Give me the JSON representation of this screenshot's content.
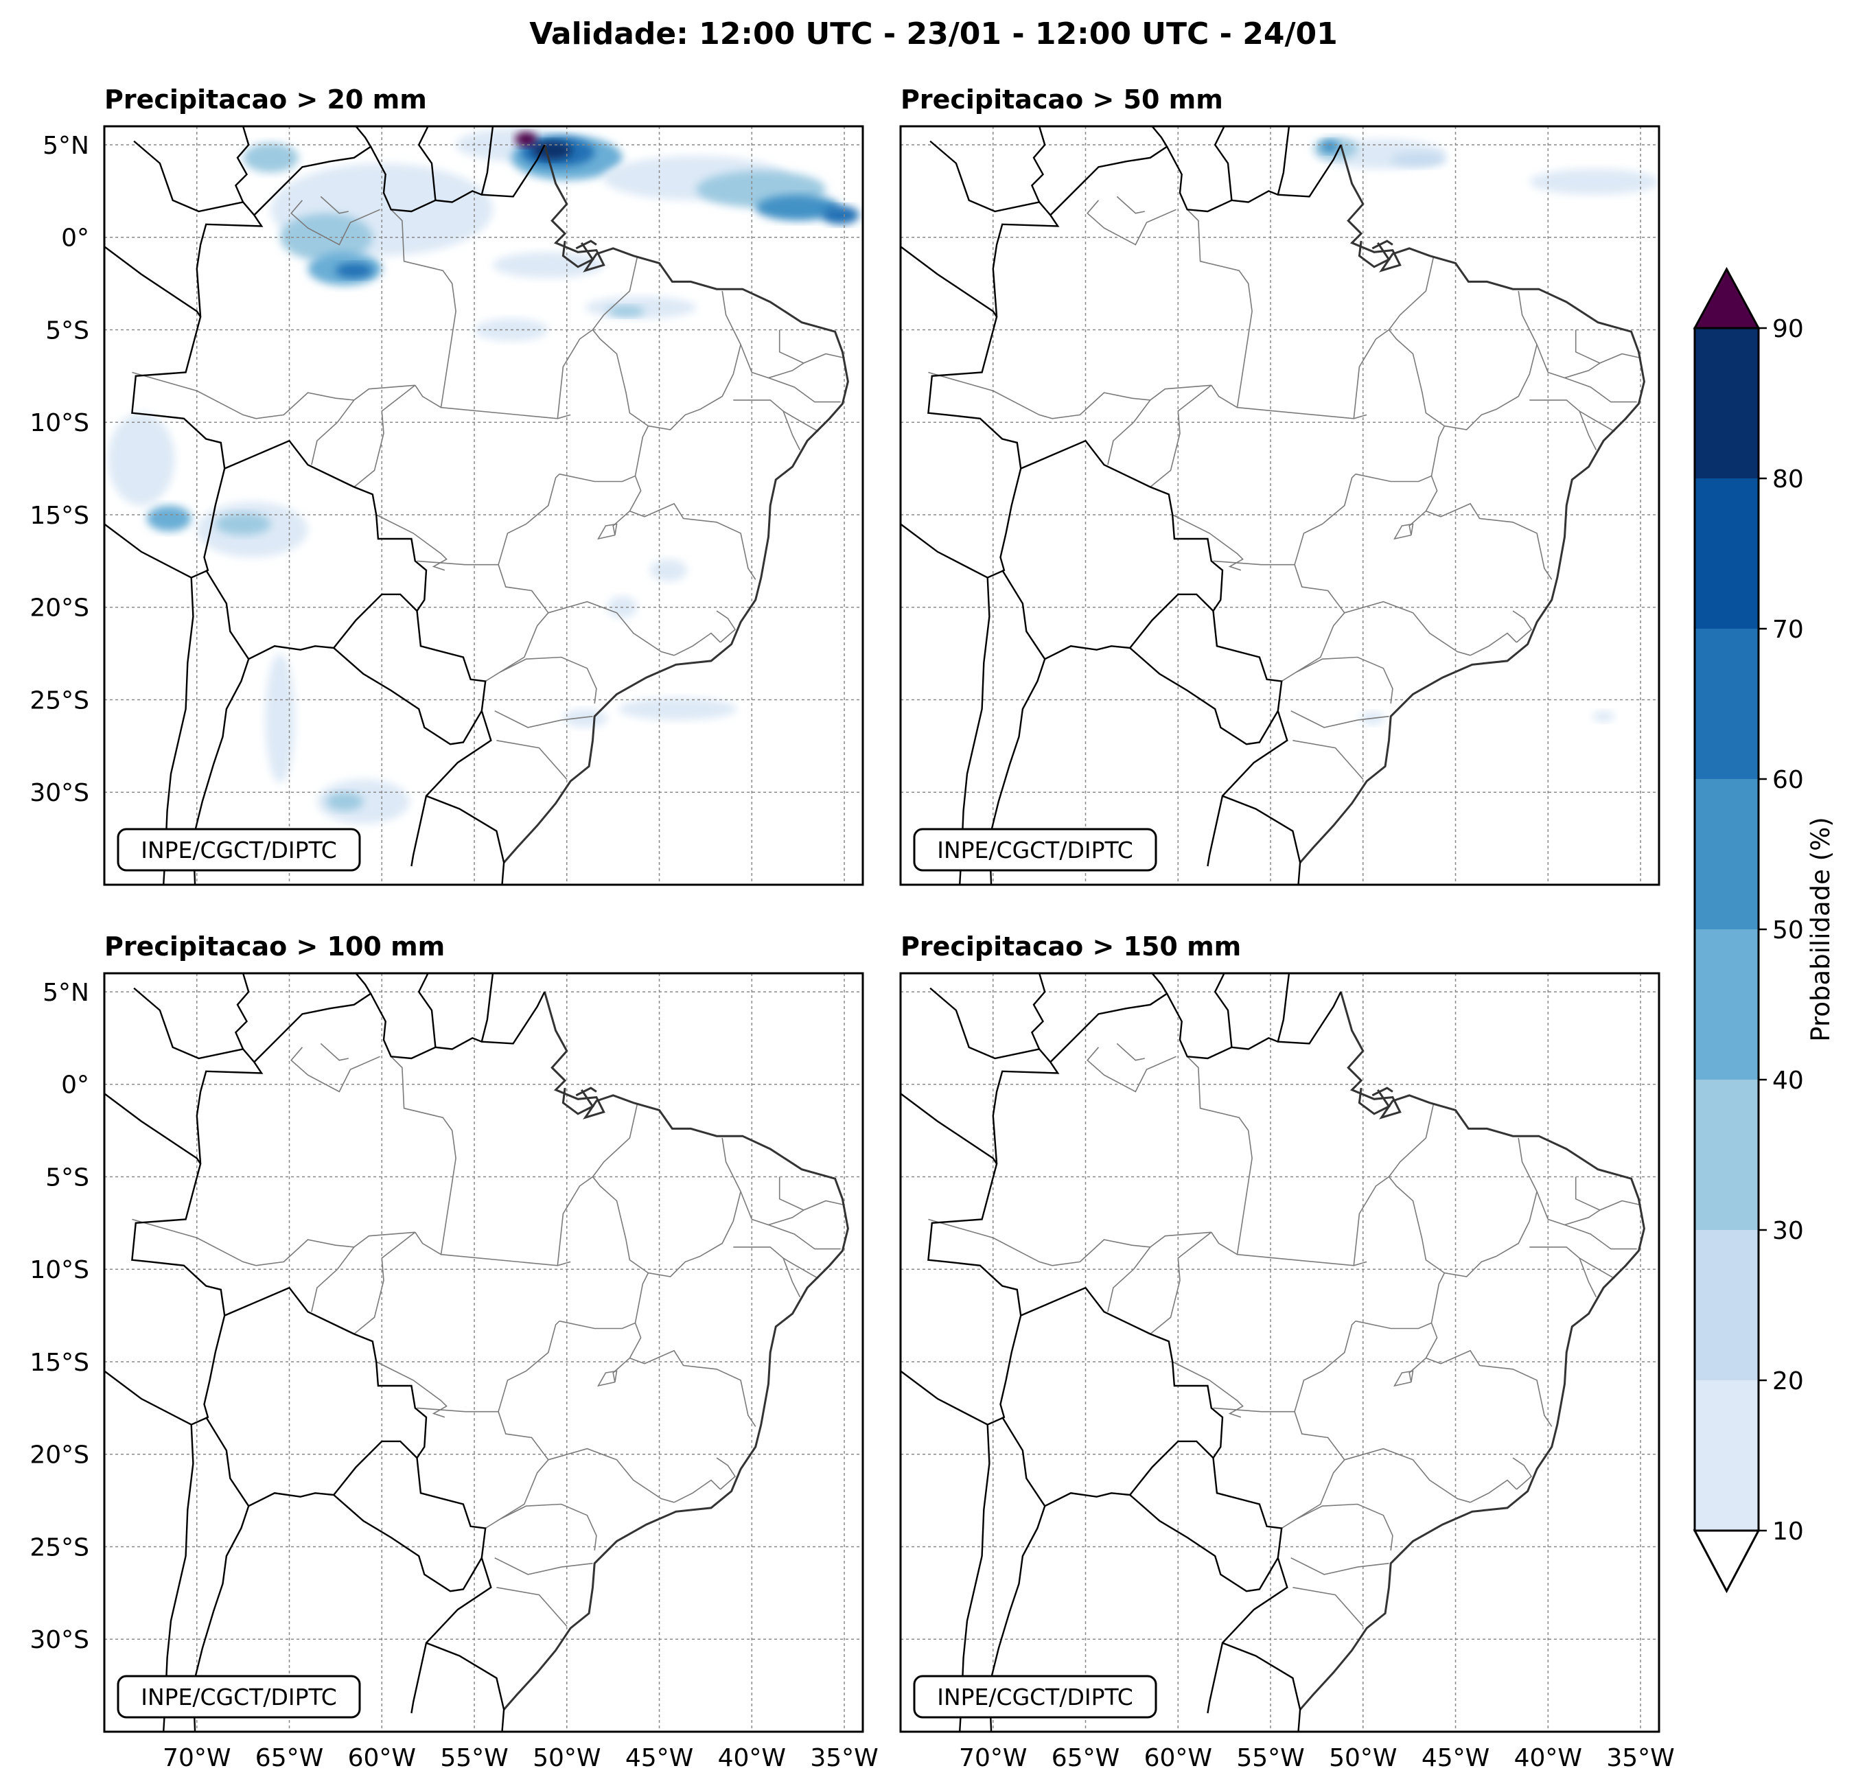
{
  "title": "Validade: 12:00 UTC - 23/01 - 12:00 UTC - 24/01",
  "panels": [
    {
      "title": "Precipitacao > 20 mm",
      "credit": "INPE/CGCT/DIPTC",
      "show_lat_labels": true,
      "show_lon_labels": false,
      "field": "p20"
    },
    {
      "title": "Precipitacao > 50 mm",
      "credit": "INPE/CGCT/DIPTC",
      "show_lat_labels": false,
      "show_lon_labels": false,
      "field": "p50"
    },
    {
      "title": "Precipitacao > 100 mm",
      "credit": "INPE/CGCT/DIPTC",
      "show_lat_labels": true,
      "show_lon_labels": true,
      "field": "none"
    },
    {
      "title": "Precipitacao > 150 mm",
      "credit": "INPE/CGCT/DIPTC",
      "show_lat_labels": false,
      "show_lon_labels": true,
      "field": "none"
    }
  ],
  "map_extent": {
    "lon_min": -75,
    "lon_max": -34,
    "lat_min": -35,
    "lat_max": 6
  },
  "lat_ticks": [
    {
      "value": 5,
      "label": "5°N"
    },
    {
      "value": 0,
      "label": "0°"
    },
    {
      "value": -5,
      "label": "5°S"
    },
    {
      "value": -10,
      "label": "10°S"
    },
    {
      "value": -15,
      "label": "15°S"
    },
    {
      "value": -20,
      "label": "20°S"
    },
    {
      "value": -25,
      "label": "25°S"
    },
    {
      "value": -30,
      "label": "30°S"
    }
  ],
  "lon_ticks": [
    {
      "value": -70,
      "label": "70°W"
    },
    {
      "value": -65,
      "label": "65°W"
    },
    {
      "value": -60,
      "label": "60°W"
    },
    {
      "value": -55,
      "label": "55°W"
    },
    {
      "value": -50,
      "label": "50°W"
    },
    {
      "value": -45,
      "label": "45°W"
    },
    {
      "value": -40,
      "label": "40°W"
    },
    {
      "value": -35,
      "label": "35°W"
    }
  ],
  "colorbar": {
    "label": "Probabilidade (%)",
    "ticks": [
      "10",
      "20",
      "30",
      "40",
      "50",
      "60",
      "70",
      "80",
      "90"
    ],
    "levels": [
      10,
      20,
      30,
      40,
      50,
      60,
      70,
      80,
      90
    ],
    "colors": [
      "#dde9f6",
      "#c6dbef",
      "#9ecae1",
      "#6baed6",
      "#4292c6",
      "#2171b5",
      "#08519c",
      "#08306b"
    ],
    "over_color": "#4d0046",
    "under_color": "#ffffff"
  },
  "probability_blobs": {
    "p20": [
      {
        "lon": -52.5,
        "lat": 5.0,
        "rx": 3.5,
        "ry": 0.9,
        "p": 15
      },
      {
        "lon": -50.0,
        "lat": 4.3,
        "rx": 3.0,
        "ry": 1.2,
        "p": 40
      },
      {
        "lon": -50.5,
        "lat": 4.6,
        "rx": 2.0,
        "ry": 0.8,
        "p": 65
      },
      {
        "lon": -50.8,
        "lat": 4.7,
        "rx": 1.1,
        "ry": 0.5,
        "p": 85
      },
      {
        "lon": -52.2,
        "lat": 5.3,
        "rx": 0.6,
        "ry": 0.4,
        "p": 92
      },
      {
        "lon": -43.0,
        "lat": 3.2,
        "rx": 5.0,
        "ry": 1.2,
        "p": 15
      },
      {
        "lon": -39.5,
        "lat": 2.6,
        "rx": 3.5,
        "ry": 1.0,
        "p": 30
      },
      {
        "lon": -37.5,
        "lat": 1.6,
        "rx": 2.3,
        "ry": 0.7,
        "p": 50
      },
      {
        "lon": -35.2,
        "lat": 1.2,
        "rx": 1.0,
        "ry": 0.5,
        "p": 62
      },
      {
        "lon": -60.0,
        "lat": 1.5,
        "rx": 6.0,
        "ry": 2.5,
        "p": 15
      },
      {
        "lon": -63.0,
        "lat": 0.0,
        "rx": 2.5,
        "ry": 1.3,
        "p": 35
      },
      {
        "lon": -62.0,
        "lat": -1.7,
        "rx": 2.0,
        "ry": 0.9,
        "p": 45
      },
      {
        "lon": -61.5,
        "lat": -1.8,
        "rx": 1.0,
        "ry": 0.4,
        "p": 60
      },
      {
        "lon": -66.0,
        "lat": 4.3,
        "rx": 1.5,
        "ry": 0.8,
        "p": 30
      },
      {
        "lon": -51.0,
        "lat": -1.5,
        "rx": 3.0,
        "ry": 0.7,
        "p": 15
      },
      {
        "lon": -46.0,
        "lat": -3.8,
        "rx": 3.0,
        "ry": 0.6,
        "p": 15
      },
      {
        "lon": -46.8,
        "lat": -4.0,
        "rx": 1.0,
        "ry": 0.3,
        "p": 35
      },
      {
        "lon": -53.0,
        "lat": -5.0,
        "rx": 2.0,
        "ry": 0.6,
        "p": 15
      },
      {
        "lon": -73.0,
        "lat": -12.0,
        "rx": 1.8,
        "ry": 2.5,
        "p": 15
      },
      {
        "lon": -71.5,
        "lat": -15.2,
        "rx": 1.2,
        "ry": 0.7,
        "p": 40
      },
      {
        "lon": -67.0,
        "lat": -15.8,
        "rx": 3.0,
        "ry": 1.5,
        "p": 15
      },
      {
        "lon": -67.5,
        "lat": -15.5,
        "rx": 1.5,
        "ry": 0.6,
        "p": 35
      },
      {
        "lon": -65.5,
        "lat": -26.0,
        "rx": 0.8,
        "ry": 3.5,
        "p": 15
      },
      {
        "lon": -61.0,
        "lat": -30.5,
        "rx": 2.5,
        "ry": 1.2,
        "p": 15
      },
      {
        "lon": -62.0,
        "lat": -30.5,
        "rx": 1.0,
        "ry": 0.5,
        "p": 30
      },
      {
        "lon": -44.0,
        "lat": -25.5,
        "rx": 3.2,
        "ry": 0.6,
        "p": 15
      },
      {
        "lon": -49.0,
        "lat": -26.0,
        "rx": 1.2,
        "ry": 0.5,
        "p": 15
      },
      {
        "lon": -44.5,
        "lat": -18.0,
        "rx": 1.0,
        "ry": 0.6,
        "p": 15
      },
      {
        "lon": -47.0,
        "lat": -20.0,
        "rx": 0.8,
        "ry": 0.6,
        "p": 15
      }
    ],
    "p50": [
      {
        "lon": -49.0,
        "lat": 4.5,
        "rx": 3.5,
        "ry": 0.8,
        "p": 15
      },
      {
        "lon": -51.5,
        "lat": 4.8,
        "rx": 1.2,
        "ry": 0.6,
        "p": 30
      },
      {
        "lon": -51.8,
        "lat": 4.9,
        "rx": 0.5,
        "ry": 0.35,
        "p": 55
      },
      {
        "lon": -37.5,
        "lat": 3.0,
        "rx": 3.5,
        "ry": 0.7,
        "p": 15
      },
      {
        "lon": -47.0,
        "lat": 4.2,
        "rx": 1.5,
        "ry": 0.4,
        "p": 25
      },
      {
        "lon": -37.0,
        "lat": -25.9,
        "rx": 0.6,
        "ry": 0.3,
        "p": 15
      },
      {
        "lon": -49.5,
        "lat": -26.0,
        "rx": 0.7,
        "ry": 0.35,
        "p": 15
      }
    ]
  }
}
